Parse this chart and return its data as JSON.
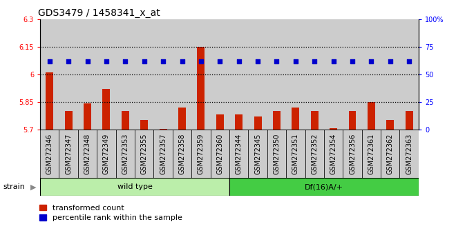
{
  "title": "GDS3479 / 1458341_x_at",
  "categories": [
    "GSM272346",
    "GSM272347",
    "GSM272348",
    "GSM272349",
    "GSM272353",
    "GSM272355",
    "GSM272357",
    "GSM272358",
    "GSM272359",
    "GSM272360",
    "GSM272344",
    "GSM272345",
    "GSM272350",
    "GSM272351",
    "GSM272352",
    "GSM272354",
    "GSM272356",
    "GSM272361",
    "GSM272362",
    "GSM272363"
  ],
  "bar_values": [
    6.01,
    5.8,
    5.84,
    5.92,
    5.8,
    5.75,
    5.701,
    5.82,
    6.15,
    5.78,
    5.78,
    5.77,
    5.8,
    5.82,
    5.8,
    5.706,
    5.8,
    5.85,
    5.75,
    5.8
  ],
  "percentile_values": [
    62,
    62,
    62,
    62,
    62,
    62,
    62,
    62,
    62,
    62,
    62,
    62,
    62,
    62,
    62,
    62,
    62,
    62,
    62,
    62
  ],
  "ylim_left": [
    5.7,
    6.3
  ],
  "ylim_right": [
    0,
    100
  ],
  "yticks_left": [
    5.7,
    5.85,
    6.0,
    6.15,
    6.3
  ],
  "yticks_right": [
    0,
    25,
    50,
    75,
    100
  ],
  "ytick_labels_left": [
    "5.7",
    "5.85",
    "6",
    "6.15",
    "6.3"
  ],
  "ytick_labels_right": [
    "0",
    "25",
    "50",
    "75",
    "100%"
  ],
  "hlines": [
    5.85,
    6.0,
    6.15
  ],
  "bar_color": "#cc2200",
  "dot_color": "#0000cc",
  "col_bg_color": "#cccccc",
  "wild_type_samples": 10,
  "wild_type_label": "wild type",
  "df_label": "Df(16)A/+",
  "wild_type_color": "#bbeeaa",
  "df_color": "#44cc44",
  "strain_label": "strain",
  "legend_bar_label": "transformed count",
  "legend_dot_label": "percentile rank within the sample",
  "title_fontsize": 10,
  "tick_fontsize": 7,
  "axis_label_fontsize": 8
}
